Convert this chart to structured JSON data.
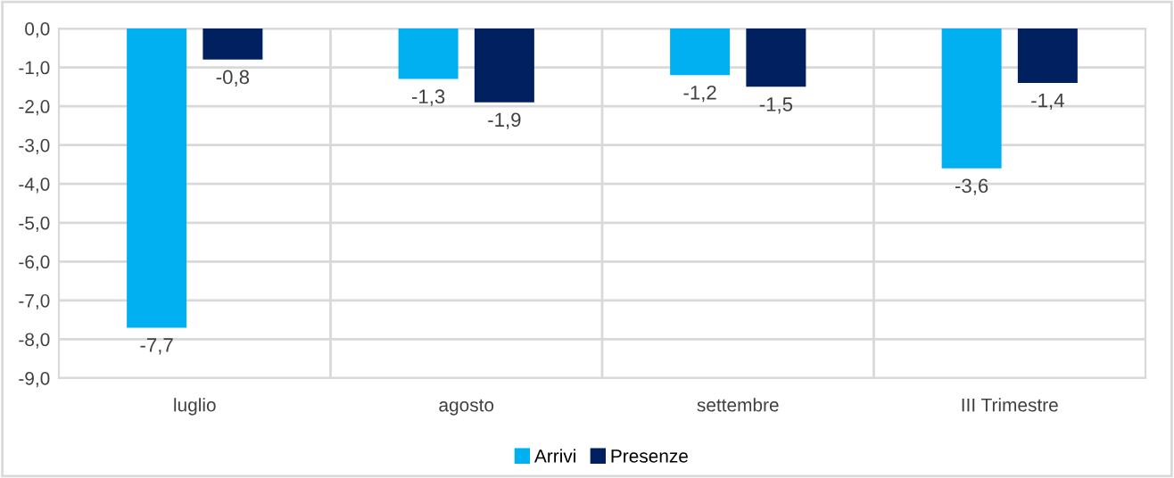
{
  "chart_data": {
    "type": "bar",
    "categories": [
      "luglio",
      "agosto",
      "settembre",
      "III Trimestre"
    ],
    "series": [
      {
        "name": "Arrivi",
        "color": "#00b0f0",
        "values": [
          -7.7,
          -1.3,
          -1.2,
          -3.6
        ],
        "value_labels": [
          "-7,7",
          "-1,3",
          "-1,2",
          "-3,6"
        ]
      },
      {
        "name": "Presenze",
        "color": "#002060",
        "values": [
          -0.8,
          -1.9,
          -1.5,
          -1.4
        ],
        "value_labels": [
          "-0,8",
          "-1,9",
          "-1,5",
          "-1,4"
        ]
      }
    ],
    "ylim": [
      -9,
      0
    ],
    "yticks": [
      {
        "value": 0,
        "label": "0,0"
      },
      {
        "value": -1,
        "label": "-1,0"
      },
      {
        "value": -2,
        "label": "-2,0"
      },
      {
        "value": -3,
        "label": "-3,0"
      },
      {
        "value": -4,
        "label": "-4,0"
      },
      {
        "value": -5,
        "label": "-5,0"
      },
      {
        "value": -6,
        "label": "-6,0"
      },
      {
        "value": -7,
        "label": "-7,0"
      },
      {
        "value": -8,
        "label": "-8,0"
      },
      {
        "value": -9,
        "label": "-9,0"
      }
    ],
    "grid": true,
    "legend": "bottom"
  }
}
